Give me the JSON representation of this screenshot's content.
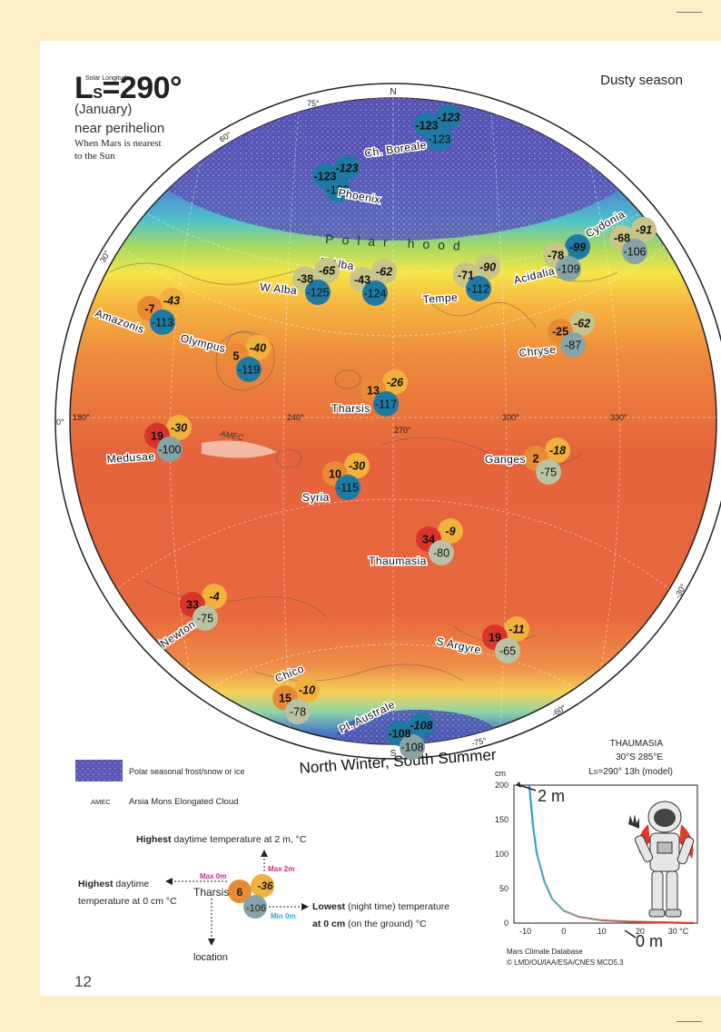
{
  "header": {
    "solar_longitude_label": "Solar Longitude",
    "ls_prefix": "L",
    "ls_sub": "S",
    "ls_value": "=290°",
    "month": "(January)",
    "perihelion": "near perihelion",
    "note_line1": "When Mars is nearest",
    "note_line2": "to the Sun",
    "season": "Dusty season"
  },
  "map": {
    "north": "N",
    "south": "S",
    "polar_hood": "Polar hood",
    "amec": "AMEC",
    "caption": "North Winter, South Summer",
    "degree_labels": [
      {
        "id": "lat-75n",
        "text": "75°"
      },
      {
        "id": "lat-60n",
        "text": "60°"
      },
      {
        "id": "lat-30n",
        "text": "30°"
      },
      {
        "id": "lat-0",
        "text": "0°"
      },
      {
        "id": "lat-30s",
        "text": "-30°"
      },
      {
        "id": "lat-60s",
        "text": "-60°"
      },
      {
        "id": "lat-75s",
        "text": "-75°"
      },
      {
        "id": "lon-180",
        "text": "180°"
      },
      {
        "id": "lon-240",
        "text": "240°"
      },
      {
        "id": "lon-270",
        "text": "270°"
      },
      {
        "id": "lon-300",
        "text": "300°"
      },
      {
        "id": "lon-330",
        "text": "330°"
      }
    ],
    "locations": [
      {
        "name": "Ch. Boreale",
        "max2m": "-123",
        "max0m": "-123",
        "min0m": "-123"
      },
      {
        "name": "Phoenix",
        "max2m": "-123",
        "max0m": "-123",
        "min0m": "-123"
      },
      {
        "name": "Cydonia",
        "max2m": "-91",
        "max0m": "-68",
        "min0m": "-106"
      },
      {
        "name": "Acidalia",
        "max2m": "-99",
        "max0m": "-78",
        "min0m": "-109"
      },
      {
        "name": "E Alba",
        "max2m": "-62",
        "max0m": "-43",
        "min0m": "-124"
      },
      {
        "name": "W Alba",
        "max2m": "-65",
        "max0m": "-38",
        "min0m": "-125"
      },
      {
        "name": "Tempe",
        "max2m": "-90",
        "max0m": "-71",
        "min0m": "-112"
      },
      {
        "name": "Amazonis",
        "max2m": "-43",
        "max0m": "-7",
        "min0m": "-113"
      },
      {
        "name": "Chryse",
        "max2m": "-62",
        "max0m": "-25",
        "min0m": "-87"
      },
      {
        "name": "Olympus",
        "max2m": "-40",
        "max0m": "5",
        "min0m": "-119"
      },
      {
        "name": "Tharsis",
        "max2m": "-26",
        "max0m": "13",
        "min0m": "-117"
      },
      {
        "name": "Medusae",
        "max2m": "-30",
        "max0m": "19",
        "min0m": "-100"
      },
      {
        "name": "Ganges",
        "max2m": "-18",
        "max0m": "2",
        "min0m": "-75"
      },
      {
        "name": "Syria",
        "max2m": "-30",
        "max0m": "10",
        "min0m": "-115"
      },
      {
        "name": "Thaumasia",
        "max2m": "-9",
        "max0m": "34",
        "min0m": "-80"
      },
      {
        "name": "Newton",
        "max2m": "-4",
        "max0m": "33",
        "min0m": "-75"
      },
      {
        "name": "S Argyre",
        "max2m": "-11",
        "max0m": "19",
        "min0m": "-65"
      },
      {
        "name": "Chico",
        "max2m": "-10",
        "max0m": "15",
        "min0m": "-78"
      },
      {
        "name": "Pl. Australe",
        "max2m": "-108",
        "max0m": "-108",
        "min0m": "-108"
      }
    ]
  },
  "legend": {
    "frost": "Polar seasonal frost/snow or ice",
    "amec_abbr": "AMEC",
    "amec": "Arsia Mons Elongated Cloud",
    "key_top_bold": "Highest",
    "key_top_rest": " daytime temperature at 2 m, °C",
    "key_left_bold": "Highest",
    "key_left_rest1": " daytime",
    "key_left_rest2": "temperature at 0 cm °C",
    "key_right_bold": "Lowest",
    "key_right_rest1": " (night time) temperature",
    "key_right_rest2a": "at 0 cm",
    "key_right_rest2b": " (on the ground) °C",
    "key_bottom": "location",
    "max0m": "Max 0m",
    "max2m": "Max 2m",
    "min0m": "Min 0m",
    "example": {
      "name": "Tharsis",
      "max0m": "6",
      "max2m": "-36",
      "min0m": "-106"
    }
  },
  "profile": {
    "title_line1": "THAUMASIA",
    "title_line2": "30°S 285°E",
    "title_line3": "L",
    "title_line3_sub": "S",
    "title_line3_rest": "=290° 13h (model)",
    "y_unit": "cm",
    "label_2m": "2 m",
    "label_0m": "0 m",
    "source1": "Mars Climate Database",
    "source2": "© LMD/OU/IAA/ESA/CNES MCD5.3",
    "x_unit": "°C"
  },
  "chart_data": {
    "type": "line",
    "title": "",
    "xlabel": "°C",
    "ylabel": "cm",
    "xlim": [
      -13,
      35
    ],
    "ylim": [
      0,
      200
    ],
    "xticks": [
      -10,
      0,
      10,
      20,
      30
    ],
    "yticks": [
      0,
      50,
      100,
      150,
      200
    ],
    "x": [
      -9,
      -8.5,
      -8,
      -7,
      -5,
      -3,
      0,
      4,
      10,
      18,
      26,
      34
    ],
    "y": [
      200,
      170,
      140,
      100,
      60,
      35,
      18,
      9,
      4,
      2,
      1,
      0
    ]
  },
  "page": {
    "number": "12"
  },
  "colors": {
    "max0m_hot": "#d9342b",
    "max0m_warm": "#e98a35",
    "max2m_warm": "#f2b03c",
    "max2m_cold": "#c9c487",
    "min0m_cold": "#1f7aa3",
    "min0m_mild": "#86a3a5",
    "min0m_warm": "#b9c3a4",
    "frost": "#5b58b4",
    "legend_pink": "#d1267b",
    "legend_cyan": "#2aa7d8"
  }
}
